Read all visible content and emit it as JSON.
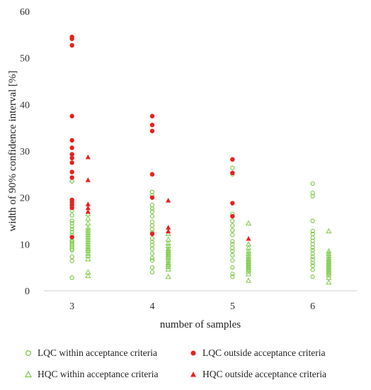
{
  "chart_data": {
    "type": "scatter",
    "xlabel": "number of samples",
    "ylabel": "width of 90% confidence interval [%]",
    "x_ticks": [
      3,
      4,
      5,
      6
    ],
    "ylim": [
      0,
      60
    ],
    "y_ticks": [
      0,
      10,
      20,
      30,
      40,
      50,
      60
    ],
    "grid": false,
    "legend_position": "bottom",
    "series": [
      {
        "name": "LQC within acceptance criteria",
        "x": 3,
        "values": [
          2.8,
          6.4,
          7.3,
          8.7,
          9.4,
          9.8,
          10.2,
          10.8,
          11.5,
          12.0,
          12.6,
          13.2,
          13.8,
          14.5,
          15.0,
          16.2,
          17.2,
          18.6,
          19.5,
          23.5,
          10.5,
          9.0
        ],
        "color": "#7ac943",
        "marker": "circle-open"
      },
      {
        "name": "LQC outside acceptance criteria",
        "x": 3,
        "values": [
          11.5,
          17.8,
          18.4,
          19.0,
          19.5,
          24.3,
          25.5,
          27.5,
          28.5,
          29.3,
          30.7,
          32.3,
          37.5,
          52.7,
          54.1,
          54.5
        ],
        "color": "#e8201e",
        "marker": "circle-filled"
      },
      {
        "name": "HQC within acceptance criteria",
        "x": 3.2,
        "values": [
          3.2,
          4.0,
          6.8,
          7.5,
          8.0,
          8.6,
          9.0,
          9.5,
          10.0,
          10.5,
          11.0,
          11.5,
          12.0,
          12.5,
          13.0,
          13.5,
          14.5,
          15.5,
          16.5
        ],
        "color": "#7ac943",
        "marker": "triangle-open"
      },
      {
        "name": "HQC outside acceptance criteria",
        "x": 3.2,
        "values": [
          17.0,
          17.8,
          18.6,
          23.8,
          28.7
        ],
        "color": "#e8201e",
        "marker": "triangle-filled"
      },
      {
        "name": "LQC within acceptance criteria",
        "x": 4,
        "values": [
          4.0,
          5.0,
          6.5,
          7.0,
          8.0,
          9.0,
          9.8,
          10.5,
          11.2,
          12.5,
          13.2,
          14.0,
          14.8,
          16.0,
          17.0,
          17.6,
          18.4,
          20.5,
          21.2
        ],
        "color": "#7ac943",
        "marker": "circle-open"
      },
      {
        "name": "LQC outside acceptance criteria",
        "x": 4,
        "values": [
          12.2,
          20.0,
          25.0,
          34.3,
          35.6,
          37.5
        ],
        "color": "#e8201e",
        "marker": "circle-filled"
      },
      {
        "name": "HQC within acceptance criteria",
        "x": 4.2,
        "values": [
          3.0,
          4.6,
          5.2,
          5.6,
          6.0,
          6.5,
          7.0,
          7.4,
          7.8,
          8.2,
          8.6,
          9.0,
          9.6,
          10.2,
          11.0,
          12.2
        ],
        "color": "#7ac943",
        "marker": "triangle-open"
      },
      {
        "name": "HQC outside acceptance criteria",
        "x": 4.2,
        "values": [
          12.8,
          13.6,
          19.4
        ],
        "color": "#e8201e",
        "marker": "triangle-filled"
      },
      {
        "name": "LQC within acceptance criteria",
        "x": 5,
        "values": [
          3.0,
          3.6,
          5.0,
          6.5,
          7.6,
          8.5,
          9.2,
          10.0,
          10.6,
          12.0,
          13.0,
          14.0,
          15.0,
          16.5,
          25.0,
          26.4
        ],
        "color": "#7ac943",
        "marker": "circle-open"
      },
      {
        "name": "LQC outside acceptance criteria",
        "x": 5,
        "values": [
          16.0,
          18.8,
          25.3,
          28.2
        ],
        "color": "#e8201e",
        "marker": "circle-filled"
      },
      {
        "name": "HQC within acceptance criteria",
        "x": 5.2,
        "values": [
          2.2,
          3.6,
          4.2,
          4.6,
          5.0,
          5.4,
          5.8,
          6.2,
          6.6,
          7.0,
          7.5,
          8.0,
          8.5,
          9.2,
          10.0,
          14.5
        ],
        "color": "#7ac943",
        "marker": "triangle-open"
      },
      {
        "name": "HQC outside acceptance criteria",
        "x": 5.2,
        "values": [
          11.2
        ],
        "color": "#e8201e",
        "marker": "triangle-filled"
      },
      {
        "name": "LQC within acceptance criteria",
        "x": 6,
        "values": [
          3.0,
          4.5,
          5.4,
          6.0,
          6.7,
          7.3,
          8.0,
          8.7,
          9.3,
          10.0,
          10.7,
          11.4,
          12.2,
          12.8,
          15.0,
          20.3,
          21.0,
          23.0
        ],
        "color": "#7ac943",
        "marker": "circle-open"
      },
      {
        "name": "HQC within acceptance criteria",
        "x": 6.2,
        "values": [
          1.8,
          2.8,
          3.4,
          3.8,
          4.2,
          4.6,
          5.0,
          5.4,
          5.8,
          6.2,
          6.6,
          7.0,
          7.5,
          8.0,
          8.5,
          12.8
        ],
        "color": "#7ac943",
        "marker": "triangle-open"
      }
    ],
    "legend": [
      {
        "label": "LQC within acceptance criteria",
        "marker": "circle-open",
        "color": "#7ac943"
      },
      {
        "label": "LQC outside acceptance criteria",
        "marker": "circle-filled",
        "color": "#e8201e"
      },
      {
        "label": "HQC within acceptance criteria",
        "marker": "triangle-open",
        "color": "#7ac943"
      },
      {
        "label": "HQC outside acceptance criteria",
        "marker": "triangle-filled",
        "color": "#e8201e"
      }
    ]
  }
}
